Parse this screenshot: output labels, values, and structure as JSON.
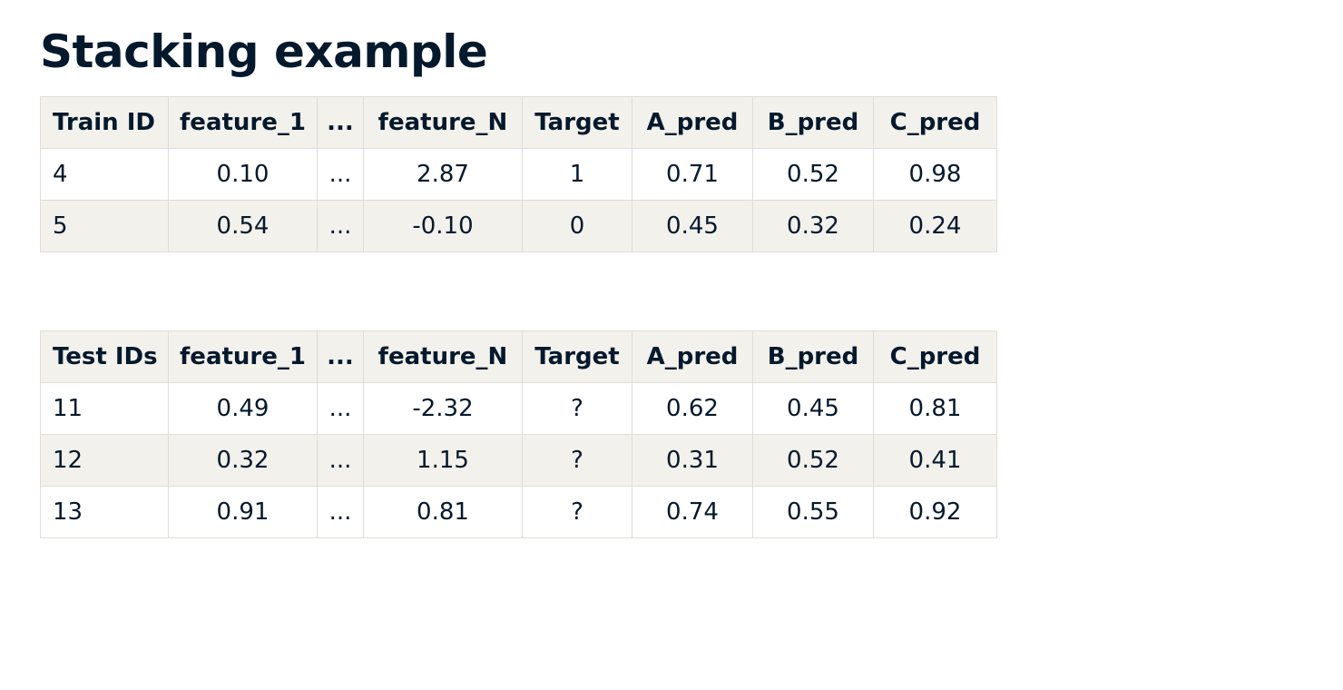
{
  "title": "Stacking example",
  "train_table": {
    "headers": [
      "Train ID",
      "feature_1",
      "...",
      "feature_N",
      "Target",
      "A_pred",
      "B_pred",
      "C_pred"
    ],
    "rows": [
      [
        "4",
        "0.10",
        "...",
        "2.87",
        "1",
        "0.71",
        "0.52",
        "0.98"
      ],
      [
        "5",
        "0.54",
        "...",
        "-0.10",
        "0",
        "0.45",
        "0.32",
        "0.24"
      ]
    ]
  },
  "test_table": {
    "headers": [
      "Test IDs",
      "feature_1",
      "...",
      "feature_N",
      "Target",
      "A_pred",
      "B_pred",
      "C_pred"
    ],
    "rows": [
      [
        "11",
        "0.49",
        "...",
        "-2.32",
        "?",
        "0.62",
        "0.45",
        "0.81"
      ],
      [
        "12",
        "0.32",
        "...",
        "1.15",
        "?",
        "0.31",
        "0.52",
        "0.41"
      ],
      [
        "13",
        "0.91",
        "...",
        "0.81",
        "?",
        "0.74",
        "0.55",
        "0.92"
      ]
    ]
  },
  "colors": {
    "text": "#05192d",
    "header_background": "#f3f1ec",
    "border": "#e1ddd6",
    "row_background": "#ffffff"
  }
}
